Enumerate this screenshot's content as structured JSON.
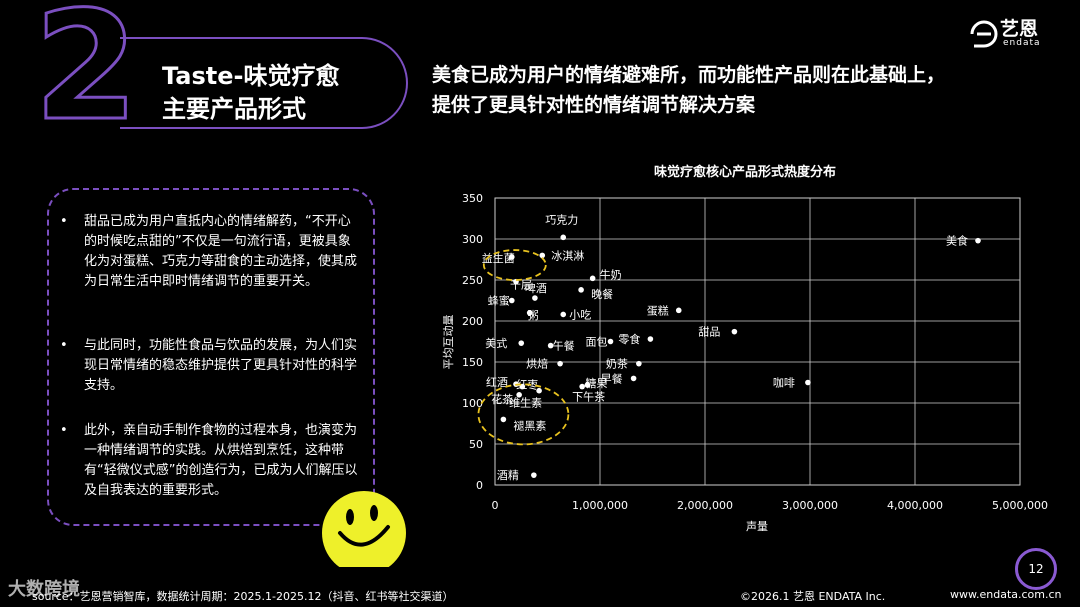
{
  "section_number": "2",
  "header": {
    "title_line1": "Taste-味觉疗愈",
    "title_line2": "主要产品形式",
    "headline_line1": "美食已成为用户的情绪避难所，而功能性产品则在此基础上，",
    "headline_line2": "提供了更具针对性的情绪调节解决方案"
  },
  "logo": {
    "name_cn": "艺恩",
    "name_en": "endata"
  },
  "bullets": [
    "甜品已成为用户直抵内心的情绪解药，“不开心的时候吃点甜的”不仅是一句流行语，更被具象化为对蛋糕、巧克力等甜食的主动选择，使其成为日常生活中即时情绪调节的重要开关。",
    "与此同时，功能性食品与饮品的发展，为人们实现日常情绪的稳态维护提供了更具针对性的科学支持。",
    "此外，亲自动手制作食物的过程本身，也演变为一种情绪调节的实践。从烘焙到烹饪，这种带有“轻微仪式感”的创造行为，已成为人们解压以及自我表达的重要形式。"
  ],
  "bullet_marker": "•",
  "chart_data": {
    "type": "scatter",
    "title": "味觉疗愈核心产品形式热度分布",
    "xlabel": "声量",
    "ylabel": "平均互动量",
    "xlim": [
      0,
      5000000
    ],
    "ylim": [
      0,
      350
    ],
    "xticks": [
      0,
      1000000,
      2000000,
      3000000,
      4000000,
      5000000
    ],
    "xtick_labels": [
      "0",
      "1,000,000",
      "2,000,000",
      "3,000,000",
      "4,000,000",
      "5,000,000"
    ],
    "yticks": [
      0,
      50,
      100,
      150,
      200,
      250,
      300,
      350
    ],
    "ytick_labels": [
      "0",
      "50",
      "100",
      "150",
      "200",
      "250",
      "300",
      "350"
    ],
    "grid": true,
    "point_color": "#ffffff",
    "highlight_color": "#e8c21f",
    "points": [
      {
        "label": "巧克力",
        "x": 650000,
        "y": 302
      },
      {
        "label": "益生菌",
        "x": 160000,
        "y": 278,
        "highlight": true
      },
      {
        "label": "冰淇淋",
        "x": 450000,
        "y": 280
      },
      {
        "label": "美食",
        "x": 4600000,
        "y": 298
      },
      {
        "label": "牛奶",
        "x": 930000,
        "y": 252
      },
      {
        "label": "千层",
        "x": 200000,
        "y": 248
      },
      {
        "label": "晚餐",
        "x": 820000,
        "y": 238
      },
      {
        "label": "啤酒",
        "x": 380000,
        "y": 228
      },
      {
        "label": "蜂蜜",
        "x": 160000,
        "y": 225
      },
      {
        "label": "蛋糕",
        "x": 1750000,
        "y": 213
      },
      {
        "label": "小吃",
        "x": 650000,
        "y": 208
      },
      {
        "label": "粥",
        "x": 330000,
        "y": 210
      },
      {
        "label": "甜品",
        "x": 2280000,
        "y": 187
      },
      {
        "label": "零食",
        "x": 1480000,
        "y": 178
      },
      {
        "label": "面包",
        "x": 1100000,
        "y": 175
      },
      {
        "label": "美式",
        "x": 250000,
        "y": 173
      },
      {
        "label": "午餐",
        "x": 530000,
        "y": 170
      },
      {
        "label": "烘焙",
        "x": 620000,
        "y": 148
      },
      {
        "label": "奶茶",
        "x": 1370000,
        "y": 148
      },
      {
        "label": "红酒",
        "x": 200000,
        "y": 123
      },
      {
        "label": "红枣",
        "x": 260000,
        "y": 120
      },
      {
        "label": "糖果",
        "x": 880000,
        "y": 122
      },
      {
        "label": "早餐",
        "x": 1320000,
        "y": 130
      },
      {
        "label": "咖啡",
        "x": 2980000,
        "y": 125
      },
      {
        "label": "花茶",
        "x": 230000,
        "y": 110
      },
      {
        "label": "维生素",
        "x": 420000,
        "y": 115
      },
      {
        "label": "下午茶",
        "x": 830000,
        "y": 120
      },
      {
        "label": "褪黑素",
        "x": 80000,
        "y": 80,
        "highlight": true
      },
      {
        "label": "酒精",
        "x": 370000,
        "y": 12
      }
    ]
  },
  "page_number": "12",
  "footer": {
    "source": "source：艺恩营销智库，数据统计周期：2025.1-2025.12（抖音、红书等社交渠道）",
    "copyright": "©2026.1 艺恩 ENDATA Inc.",
    "website": "www.endata.com.cn",
    "watermark": "大数跨境"
  }
}
